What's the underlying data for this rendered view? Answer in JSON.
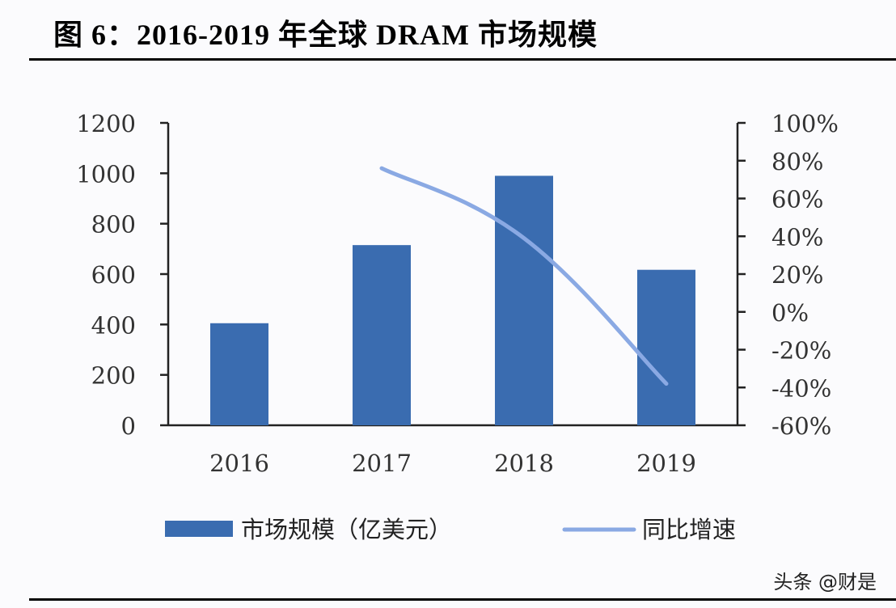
{
  "title": "图 6：2016-2019 年全球 DRAM 市场规模",
  "watermark": "头条 @财是",
  "colors": {
    "bar": "#3a6cb0",
    "line": "#8aa9e3",
    "axis": "#222222"
  },
  "chart_data": {
    "type": "bar",
    "categories": [
      "2016",
      "2017",
      "2018",
      "2019"
    ],
    "series": [
      {
        "name": "市场规模（亿美元）",
        "type": "bar",
        "axis": "left",
        "values": [
          405,
          715,
          990,
          617
        ]
      },
      {
        "name": "同比增速",
        "type": "line",
        "axis": "right",
        "values": [
          null,
          76,
          39,
          -38
        ]
      }
    ],
    "ylim_left": [
      0,
      1200
    ],
    "yticks_left": [
      "0",
      "200",
      "400",
      "600",
      "800",
      "1000",
      "1200"
    ],
    "ylim_right": [
      -60,
      100
    ],
    "yticks_right": [
      "-60%",
      "-40%",
      "-20%",
      "0%",
      "20%",
      "40%",
      "60%",
      "80%",
      "100%"
    ],
    "grid": false,
    "legend_position": "bottom"
  }
}
